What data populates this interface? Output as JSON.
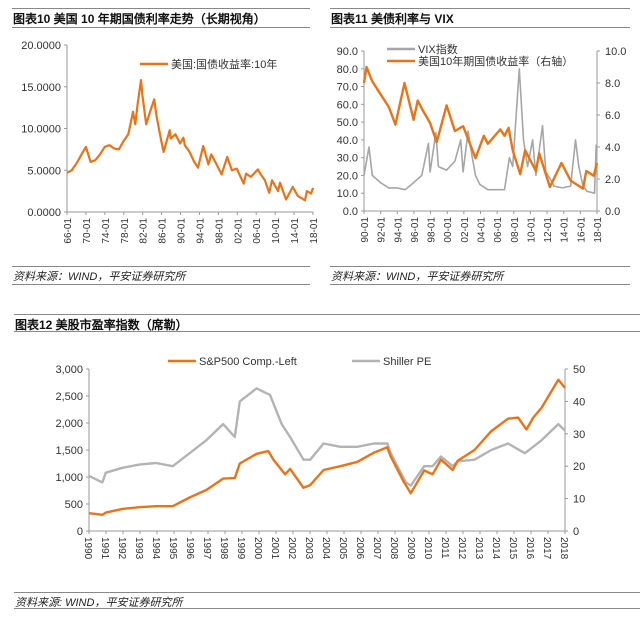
{
  "panels": [
    {
      "title": "图表10    美国 10 年期国债利率走势（长期视角）",
      "source": "资料来源：WIND，平安证券研究所"
    },
    {
      "title": "图表11    美债利率与 VIX",
      "source": "资料来源：WIND，平安证券研究所"
    },
    {
      "title": "图表12    美股市盈率指数（席勒）",
      "source": "资料来源: WIND，平安证券研究所"
    }
  ],
  "chart_data": [
    {
      "type": "line",
      "title": "美国 10 年期国债利率走势（长期视角）",
      "ylim": [
        0,
        20
      ],
      "yticks": [
        "0.0000",
        "5.0000",
        "10.0000",
        "15.0000",
        "20.0000"
      ],
      "xlim": [
        1966,
        2018.2
      ],
      "xticks": [
        "66-01",
        "70-01",
        "74-01",
        "78-01",
        "82-01",
        "86-01",
        "90-01",
        "94-01",
        "98-01",
        "02-01",
        "06-01",
        "10-01",
        "14-01",
        "18-01"
      ],
      "series": [
        {
          "name": "美国:国债收益率:10年",
          "color": "#E8741A",
          "axis": "left",
          "x": [
            1966,
            1967,
            1968,
            1969,
            1970,
            1971,
            1972,
            1973,
            1974,
            1975,
            1976,
            1977,
            1978,
            1979,
            1980,
            1980.5,
            1981,
            1981.7,
            1982,
            1982.8,
            1983.5,
            1984.5,
            1985,
            1986,
            1986.5,
            1987.8,
            1988,
            1989,
            1990,
            1990.7,
            1991,
            1992,
            1993,
            1993.8,
            1994.9,
            1996,
            1996.6,
            1997,
            1998.8,
            2000,
            2001,
            2002,
            2003.5,
            2004,
            2005,
            2006.5,
            2007,
            2008,
            2008.9,
            2009.5,
            2010.8,
            2011.2,
            2012.5,
            2013.9,
            2015,
            2016.5,
            2016.9,
            2017.8,
            2018.2
          ],
          "y": [
            4.7,
            5.0,
            5.8,
            6.8,
            7.8,
            6.0,
            6.2,
            6.9,
            7.8,
            8.0,
            7.6,
            7.5,
            8.5,
            9.3,
            12.0,
            10.5,
            13.0,
            15.8,
            14.0,
            10.5,
            11.8,
            13.5,
            11.5,
            8.5,
            7.2,
            9.8,
            8.8,
            9.3,
            8.2,
            8.9,
            8.0,
            7.2,
            6.0,
            5.3,
            7.9,
            5.7,
            6.9,
            6.5,
            4.5,
            6.6,
            5.0,
            5.2,
            3.4,
            4.6,
            4.2,
            5.1,
            4.6,
            3.8,
            2.3,
            3.8,
            2.5,
            3.5,
            1.5,
            3.0,
            1.9,
            1.4,
            2.5,
            2.2,
            2.9
          ]
        }
      ]
    },
    {
      "type": "line",
      "title": "美债利率与 VIX",
      "ylim": [
        0,
        90
      ],
      "yticks": [
        "0.0",
        "10.0",
        "20.0",
        "30.0",
        "40.0",
        "50.0",
        "60.0",
        "70.0",
        "80.0",
        "90.0"
      ],
      "y2lim": [
        0,
        10
      ],
      "y2ticks": [
        "0.0",
        "2.0",
        "4.0",
        "6.0",
        "8.0",
        "10.0"
      ],
      "xlim": [
        1990,
        2018.2
      ],
      "xticks": [
        "90-01",
        "92-01",
        "94-01",
        "96-01",
        "98-01",
        "00-01",
        "02-01",
        "04-01",
        "06-01",
        "08-01",
        "10-01",
        "12-01",
        "14-01",
        "16-01",
        "18-01"
      ],
      "series": [
        {
          "name": "VIX指数",
          "color": "#A6A6A6",
          "axis": "left",
          "x": [
            1990,
            1990.6,
            1991,
            1992,
            1993,
            1994,
            1995,
            1996,
            1997,
            1997.8,
            1998,
            1998.7,
            1999,
            2000,
            2001,
            2001.7,
            2002,
            2002.6,
            2003,
            2003.5,
            2004,
            2005,
            2006,
            2007,
            2007.6,
            2008,
            2008.8,
            2009.3,
            2009.8,
            2010.4,
            2010.8,
            2011.6,
            2012,
            2012.8,
            2013,
            2014,
            2015,
            2015.6,
            2016,
            2016.5,
            2017,
            2017.9,
            2018.1,
            2018.2
          ],
          "y": [
            20,
            36,
            20,
            16,
            13,
            13,
            12,
            16,
            20,
            38,
            22,
            44,
            25,
            23,
            28,
            40,
            22,
            45,
            33,
            20,
            15,
            12,
            12,
            12,
            30,
            25,
            80,
            40,
            25,
            40,
            20,
            48,
            22,
            16,
            14,
            13,
            14,
            40,
            25,
            14,
            11,
            10,
            37,
            20
          ]
        },
        {
          "name": "美国10年期国债收益率（右轴）",
          "color": "#E8741A",
          "axis": "right",
          "x": [
            1990,
            1990.3,
            1991,
            1992,
            1993,
            1993.8,
            1994.9,
            1996,
            1996.5,
            1997,
            1998,
            1998.8,
            2000,
            2001,
            2002,
            2003.5,
            2004.5,
            2005,
            2006.5,
            2007,
            2007.5,
            2008,
            2008.9,
            2009.5,
            2010.8,
            2011.2,
            2012.5,
            2013.9,
            2015,
            2016.5,
            2016.9,
            2017.8,
            2018.2
          ],
          "y": [
            8.0,
            9.0,
            8.1,
            7.3,
            6.5,
            5.4,
            8.0,
            5.7,
            6.9,
            6.4,
            5.5,
            4.3,
            6.6,
            5.0,
            5.3,
            3.3,
            4.7,
            4.2,
            5.1,
            4.7,
            5.2,
            3.8,
            2.3,
            3.8,
            2.5,
            3.6,
            1.5,
            3.0,
            1.9,
            1.4,
            2.5,
            2.2,
            3.0
          ]
        }
      ]
    },
    {
      "type": "line",
      "title": "美股市盈率指数（席勒）",
      "ylim": [
        0,
        3000
      ],
      "yticks": [
        "0",
        "500",
        "1,000",
        "1,500",
        "2,000",
        "2,500",
        "3,000"
      ],
      "y2lim": [
        0,
        50
      ],
      "y2ticks": [
        "0",
        "10",
        "20",
        "30",
        "40",
        "50"
      ],
      "xlim": [
        1990,
        2018.4
      ],
      "xticks": [
        "1990",
        "1991",
        "1992",
        "1993",
        "1994",
        "1995",
        "1996",
        "1997",
        "1998",
        "1999",
        "2000",
        "2001",
        "2002",
        "2003",
        "2004",
        "2005",
        "2006",
        "2007",
        "2008",
        "2009",
        "2010",
        "2011",
        "2012",
        "2013",
        "2014",
        "2015",
        "2016",
        "2017",
        "2018"
      ],
      "series": [
        {
          "name": "Shiller PE",
          "color": "#B3B3B3",
          "axis": "right",
          "x": [
            1990,
            1990.8,
            1991,
            1992,
            1993,
            1994,
            1995,
            1996,
            1997,
            1998,
            1998.7,
            1999,
            2000,
            2000.8,
            2001.5,
            2002,
            2002.8,
            2003.2,
            2004,
            2005,
            2006,
            2007,
            2007.8,
            2008,
            2008.9,
            2009.2,
            2010,
            2010.5,
            2011,
            2011.7,
            2012,
            2013,
            2014,
            2015,
            2016,
            2016.5,
            2017,
            2018,
            2018.4
          ],
          "y": [
            17,
            15,
            18,
            19.5,
            20.5,
            21,
            20,
            24,
            28,
            33,
            29,
            40,
            44,
            42,
            33,
            29,
            22,
            22,
            27,
            26,
            26,
            27,
            27,
            24,
            15,
            14,
            20,
            20,
            23,
            20,
            21.5,
            22,
            25,
            27,
            24,
            26,
            28,
            33,
            31
          ]
        },
        {
          "name": "S&P500 Comp.-Left",
          "color": "#E8741A",
          "axis": "left",
          "x": [
            1990,
            1990.8,
            1991,
            1992,
            1993,
            1994,
            1995,
            1996,
            1997,
            1998,
            1998.7,
            1999,
            2000,
            2000.7,
            2001,
            2001.7,
            2002,
            2002.8,
            2003.2,
            2004,
            2005,
            2006,
            2007,
            2007.8,
            2008,
            2008.8,
            2009.2,
            2010,
            2010.5,
            2011,
            2011.7,
            2012,
            2013,
            2014,
            2015,
            2015.6,
            2016.1,
            2016.5,
            2017,
            2018,
            2018.4
          ],
          "y": [
            330,
            300,
            340,
            410,
            440,
            460,
            460,
            620,
            760,
            970,
            980,
            1250,
            1430,
            1480,
            1320,
            1050,
            1150,
            800,
            850,
            1130,
            1200,
            1280,
            1450,
            1550,
            1380,
            900,
            700,
            1120,
            1050,
            1320,
            1130,
            1300,
            1500,
            1850,
            2080,
            2100,
            1880,
            2100,
            2280,
            2800,
            2650
          ]
        }
      ]
    }
  ]
}
